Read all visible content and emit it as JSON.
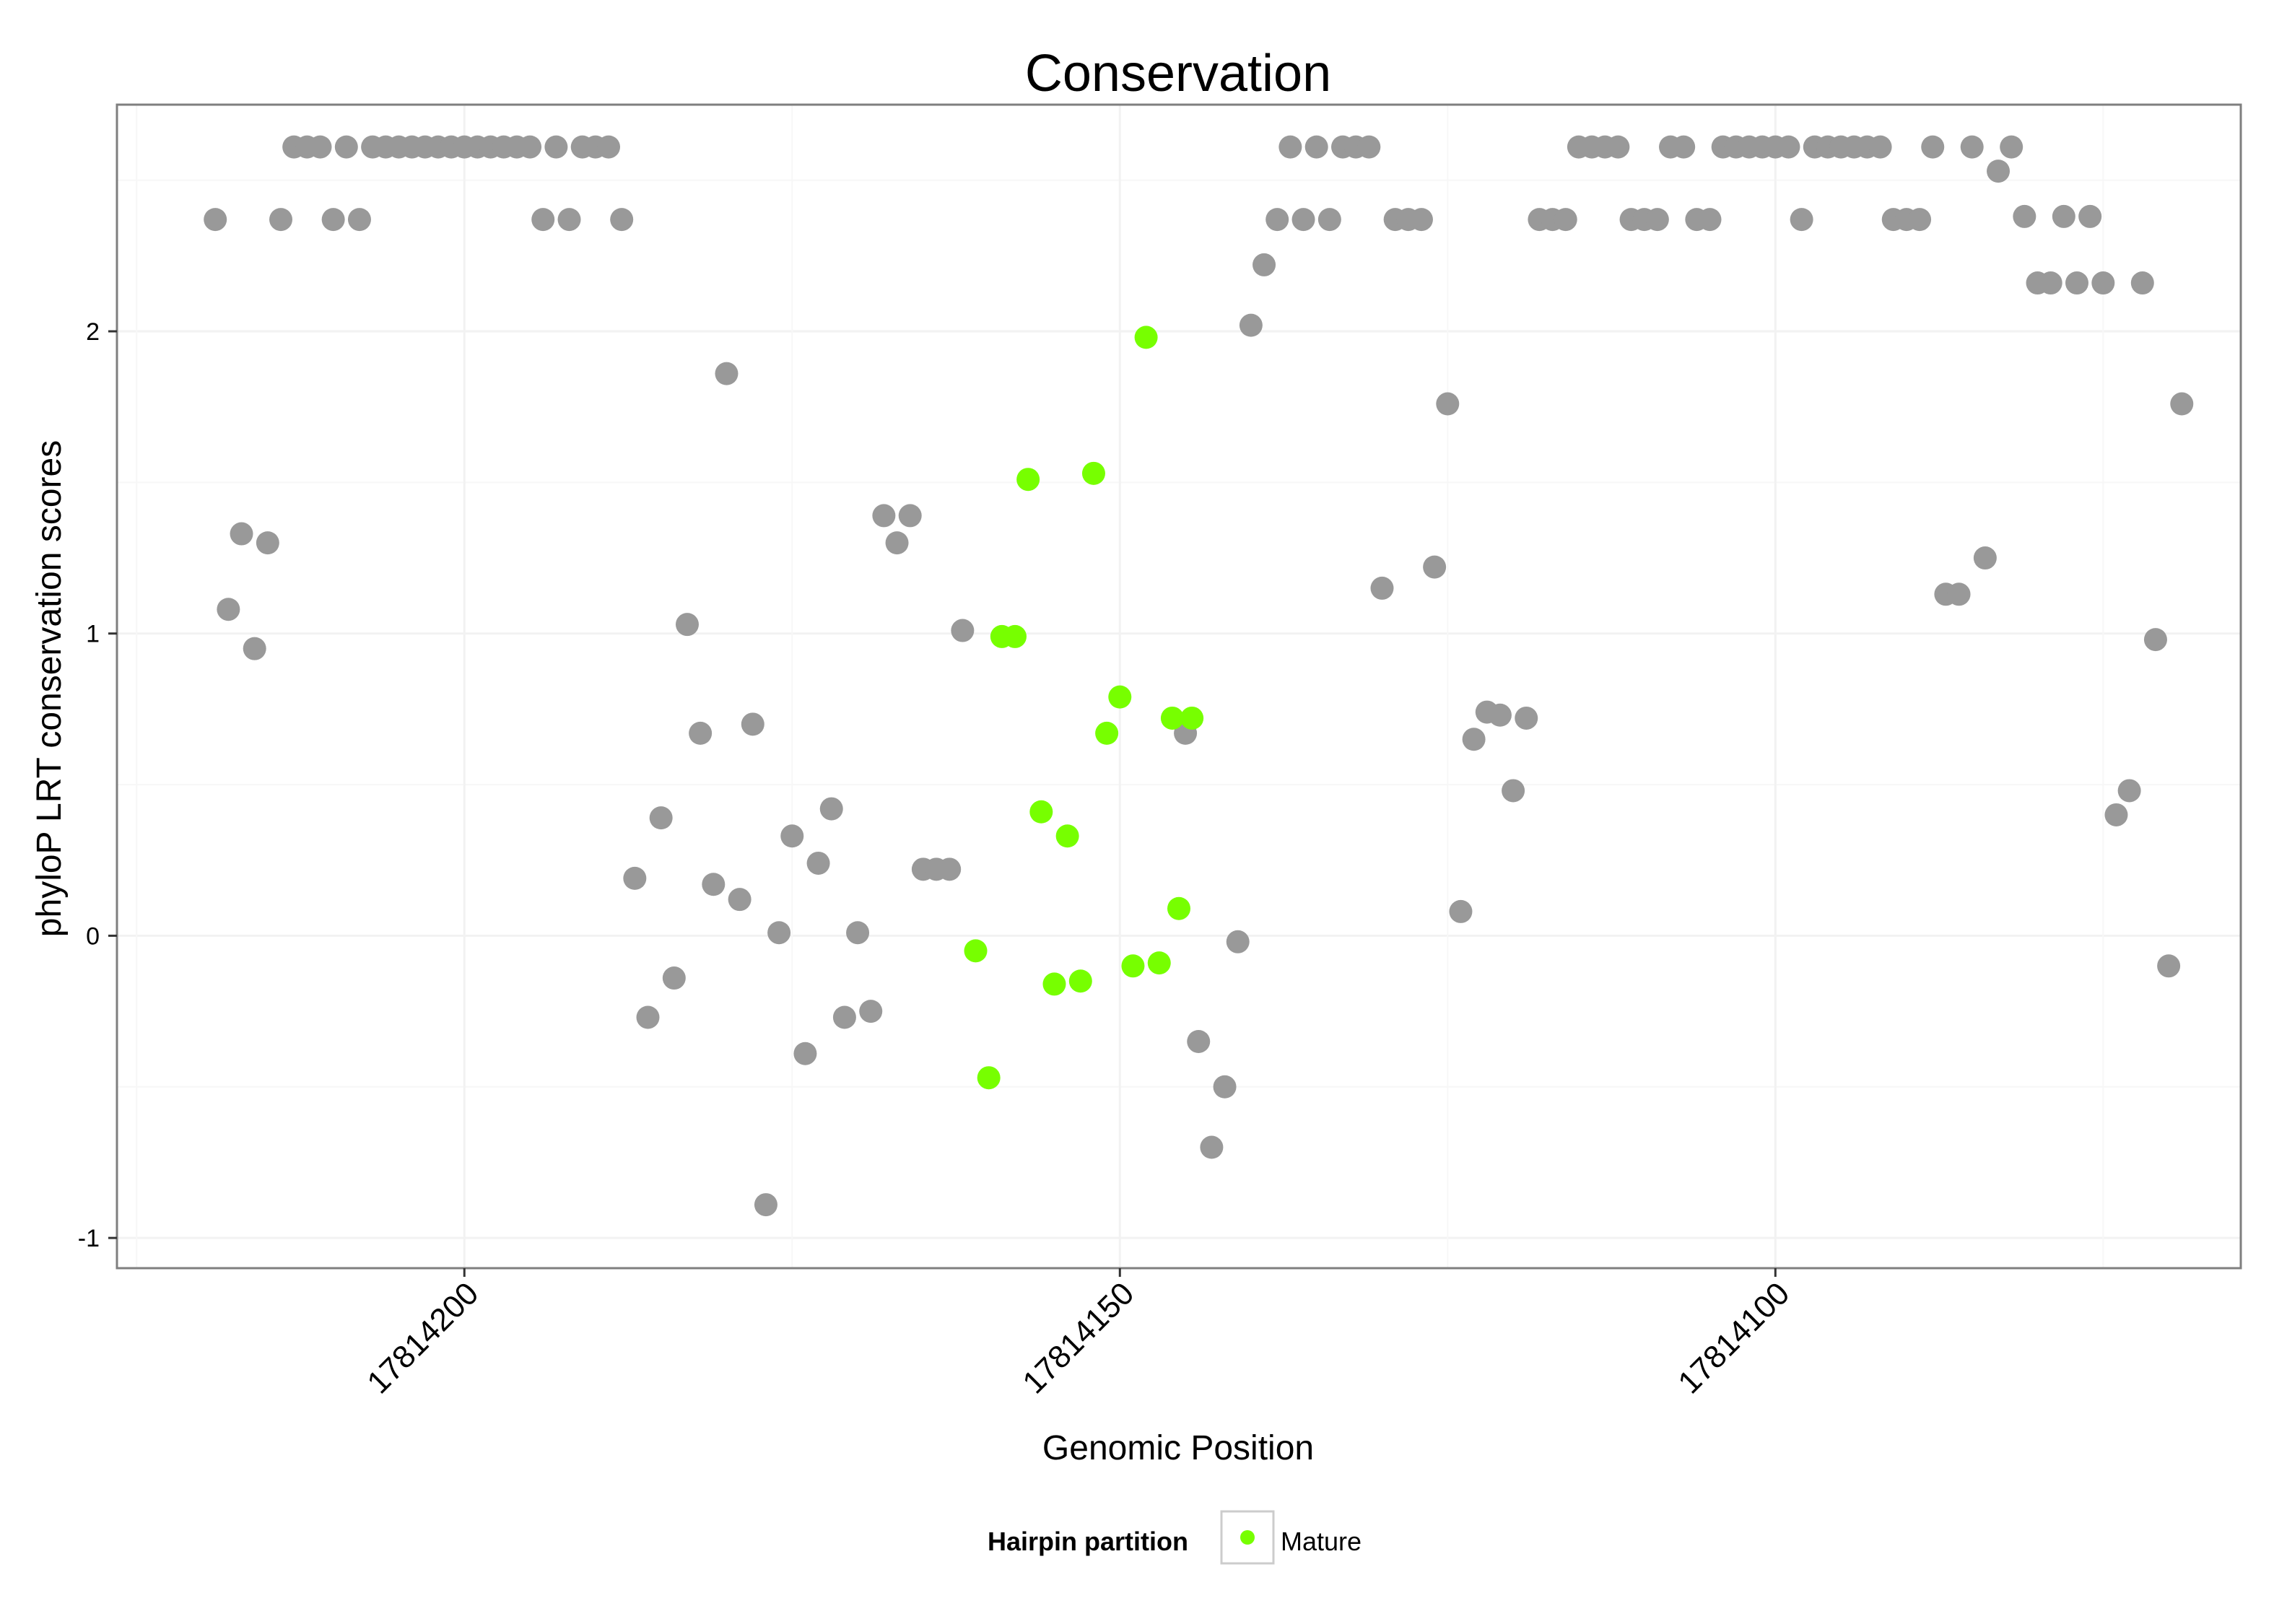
{
  "chart_data": {
    "type": "scatter",
    "title": "Conservation",
    "xlabel": "Genomic Position",
    "ylabel": "phyloP LRT conservation scores",
    "xlim": [
      17814226.5,
      17814064.5
    ],
    "ylim": [
      -1.1,
      2.75
    ],
    "x_reversed": true,
    "x_ticks": [
      17814200,
      17814150,
      17814100
    ],
    "y_ticks": [
      -1,
      0,
      1,
      2
    ],
    "grid": true,
    "legend": {
      "title": "Hairpin partition",
      "placement": "bottom",
      "entries": [
        {
          "label": "Mature",
          "color": "#77ff00"
        }
      ]
    },
    "colors": {
      "other": "#999999",
      "mature": "#77ff00"
    },
    "series": [
      {
        "name": "Other",
        "points": [
          [
            17814219,
            2.37
          ],
          [
            17814218,
            1.08
          ],
          [
            17814217,
            1.33
          ],
          [
            17814216,
            0.95
          ],
          [
            17814215,
            1.3
          ],
          [
            17814214,
            2.37
          ],
          [
            17814213,
            2.61
          ],
          [
            17814212,
            2.61
          ],
          [
            17814211,
            2.61
          ],
          [
            17814210,
            2.37
          ],
          [
            17814209,
            2.61
          ],
          [
            17814208,
            2.37
          ],
          [
            17814207,
            2.61
          ],
          [
            17814206,
            2.61
          ],
          [
            17814205,
            2.61
          ],
          [
            17814204,
            2.61
          ],
          [
            17814203,
            2.61
          ],
          [
            17814202,
            2.61
          ],
          [
            17814201,
            2.61
          ],
          [
            17814200,
            2.61
          ],
          [
            17814199,
            2.61
          ],
          [
            17814198,
            2.61
          ],
          [
            17814197,
            2.61
          ],
          [
            17814196,
            2.61
          ],
          [
            17814195,
            2.61
          ],
          [
            17814194,
            2.37
          ],
          [
            17814193,
            2.61
          ],
          [
            17814192,
            2.37
          ],
          [
            17814191,
            2.61
          ],
          [
            17814190,
            2.61
          ],
          [
            17814189,
            2.61
          ],
          [
            17814188,
            2.37
          ],
          [
            17814187,
            0.19
          ],
          [
            17814186,
            -0.27
          ],
          [
            17814185,
            0.39
          ],
          [
            17814184,
            -0.14
          ],
          [
            17814183,
            1.03
          ],
          [
            17814182,
            0.67
          ],
          [
            17814181,
            0.17
          ],
          [
            17814180,
            1.86
          ],
          [
            17814179,
            0.12
          ],
          [
            17814178,
            0.7
          ],
          [
            17814177,
            -0.89
          ],
          [
            17814176,
            0.01
          ],
          [
            17814175,
            0.33
          ],
          [
            17814174,
            -0.39
          ],
          [
            17814173,
            0.24
          ],
          [
            17814172,
            0.42
          ],
          [
            17814171,
            -0.27
          ],
          [
            17814170,
            0.01
          ],
          [
            17814169,
            -0.25
          ],
          [
            17814168,
            1.39
          ],
          [
            17814167,
            1.3
          ],
          [
            17814166,
            1.39
          ],
          [
            17814165,
            0.22
          ],
          [
            17814164,
            0.22
          ],
          [
            17814163,
            0.22
          ],
          [
            17814162,
            1.01
          ],
          [
            17814145,
            0.67
          ],
          [
            17814144,
            -0.35
          ],
          [
            17814143,
            -0.7
          ],
          [
            17814142,
            -0.5
          ],
          [
            17814141,
            -0.02
          ],
          [
            17814140,
            2.02
          ],
          [
            17814139,
            2.22
          ],
          [
            17814138,
            2.37
          ],
          [
            17814137,
            2.61
          ],
          [
            17814136,
            2.37
          ],
          [
            17814135,
            2.61
          ],
          [
            17814134,
            2.37
          ],
          [
            17814133,
            2.61
          ],
          [
            17814132,
            2.61
          ],
          [
            17814131,
            2.61
          ],
          [
            17814130,
            1.15
          ],
          [
            17814129,
            2.37
          ],
          [
            17814128,
            2.37
          ],
          [
            17814127,
            2.37
          ],
          [
            17814126,
            1.22
          ],
          [
            17814125,
            1.76
          ],
          [
            17814124,
            0.08
          ],
          [
            17814123,
            0.65
          ],
          [
            17814122,
            0.74
          ],
          [
            17814121,
            0.73
          ],
          [
            17814120,
            0.48
          ],
          [
            17814119,
            0.72
          ],
          [
            17814118,
            2.37
          ],
          [
            17814117,
            2.37
          ],
          [
            17814116,
            2.37
          ],
          [
            17814115,
            2.61
          ],
          [
            17814114,
            2.61
          ],
          [
            17814113,
            2.61
          ],
          [
            17814112,
            2.61
          ],
          [
            17814111,
            2.37
          ],
          [
            17814110,
            2.37
          ],
          [
            17814109,
            2.37
          ],
          [
            17814108,
            2.61
          ],
          [
            17814107,
            2.61
          ],
          [
            17814106,
            2.37
          ],
          [
            17814105,
            2.37
          ],
          [
            17814104,
            2.61
          ],
          [
            17814103,
            2.61
          ],
          [
            17814102,
            2.61
          ],
          [
            17814101,
            2.61
          ],
          [
            17814100,
            2.61
          ],
          [
            17814099,
            2.61
          ],
          [
            17814098,
            2.37
          ],
          [
            17814097,
            2.61
          ],
          [
            17814096,
            2.61
          ],
          [
            17814095,
            2.61
          ],
          [
            17814094,
            2.61
          ],
          [
            17814093,
            2.61
          ],
          [
            17814092,
            2.61
          ],
          [
            17814091,
            2.37
          ],
          [
            17814090,
            2.37
          ],
          [
            17814089,
            2.37
          ],
          [
            17814088,
            2.61
          ],
          [
            17814087,
            1.13
          ],
          [
            17814086,
            1.13
          ],
          [
            17814085,
            2.61
          ],
          [
            17814084,
            1.25
          ],
          [
            17814083,
            2.53
          ],
          [
            17814082,
            2.61
          ],
          [
            17814081,
            2.38
          ],
          [
            17814080,
            2.16
          ],
          [
            17814079,
            2.16
          ],
          [
            17814078,
            2.38
          ],
          [
            17814077,
            2.16
          ],
          [
            17814076,
            2.38
          ],
          [
            17814075,
            2.16
          ],
          [
            17814074,
            0.4
          ],
          [
            17814073,
            0.48
          ],
          [
            17814072,
            2.16
          ],
          [
            17814071,
            0.98
          ],
          [
            17814070,
            -0.1
          ],
          [
            17814069,
            1.76
          ]
        ]
      },
      {
        "name": "Mature",
        "points": [
          [
            17814161,
            -0.05
          ],
          [
            17814160,
            -0.47
          ],
          [
            17814159,
            0.99
          ],
          [
            17814158,
            0.99
          ],
          [
            17814157,
            1.51
          ],
          [
            17814156,
            0.41
          ],
          [
            17814155,
            -0.16
          ],
          [
            17814154,
            0.33
          ],
          [
            17814153,
            -0.15
          ],
          [
            17814152,
            1.53
          ],
          [
            17814151,
            0.67
          ],
          [
            17814150,
            0.79
          ],
          [
            17814149,
            -0.1
          ],
          [
            17814148,
            1.98
          ],
          [
            17814147,
            -0.09
          ],
          [
            17814146,
            0.72
          ],
          [
            17814145.5,
            0.09
          ],
          [
            17814144.5,
            0.72
          ]
        ]
      }
    ]
  }
}
